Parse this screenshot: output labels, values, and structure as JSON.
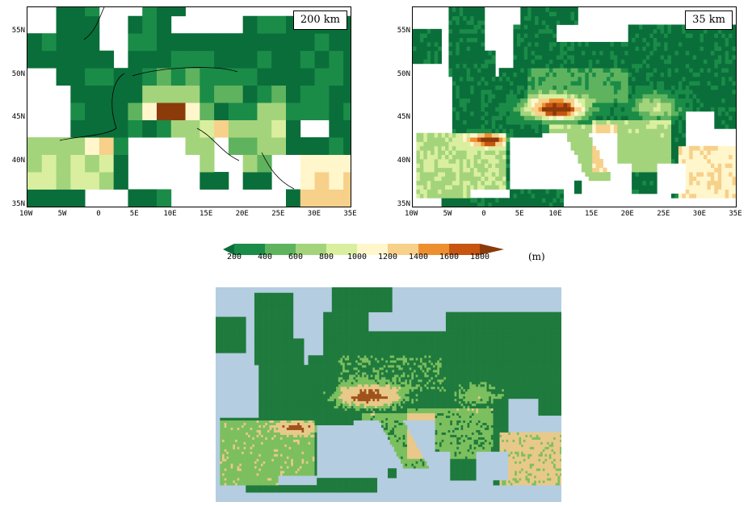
{
  "panels": [
    {
      "label": "200 km"
    },
    {
      "label": "35 km"
    }
  ],
  "axes": {
    "x_ticks": [
      "10W",
      "5W",
      "0",
      "5E",
      "10E",
      "15E",
      "20E",
      "25E",
      "30E",
      "35E"
    ],
    "y_ticks": [
      "55N",
      "50N",
      "45N",
      "40N",
      "35N"
    ]
  },
  "colorbar": {
    "levels": [
      "200",
      "400",
      "600",
      "800",
      "1000",
      "1200",
      "1400",
      "1600",
      "1800"
    ],
    "unit": "(m)",
    "colors": [
      "#0a6e3a",
      "#1a8c48",
      "#5fb35e",
      "#a3d47c",
      "#d9ef9f",
      "#fff6cc",
      "#f7d08a",
      "#ee8f2f",
      "#c75410",
      "#8b3a0a"
    ]
  },
  "relief_colors": {
    "sea": "#b4cde0",
    "low": "#1f7a3d",
    "mid": "#7cbf5e",
    "high": "#e8c98a",
    "peak": "#a0521c"
  }
}
